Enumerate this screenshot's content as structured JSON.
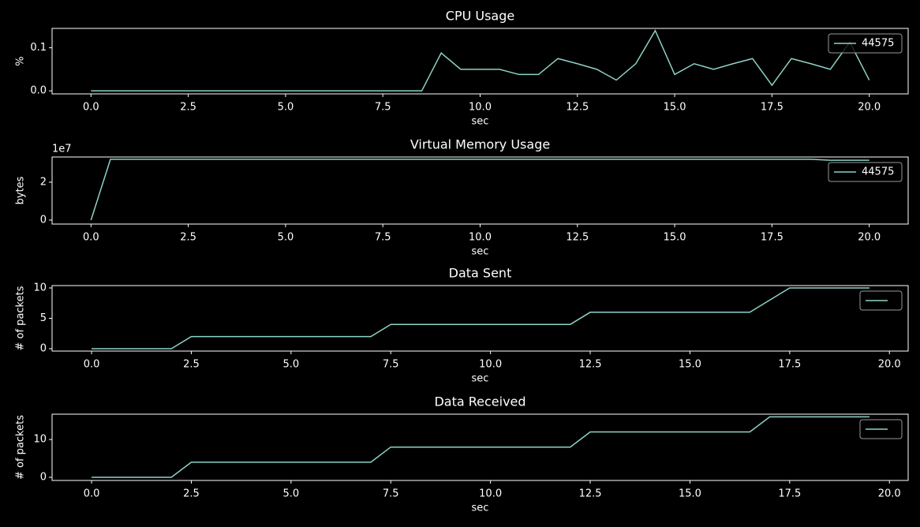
{
  "chart_data": [
    {
      "type": "line",
      "title": "CPU Usage",
      "xlabel": "sec",
      "ylabel": "%",
      "x": [
        0,
        0.5,
        1,
        1.5,
        2,
        2.5,
        3,
        3.5,
        4,
        4.5,
        5,
        5.5,
        6,
        6.5,
        7,
        7.5,
        8,
        8.5,
        9,
        9.5,
        10,
        10.5,
        11,
        11.5,
        12,
        12.5,
        13,
        13.5,
        14,
        14.5,
        15,
        15.5,
        16,
        16.5,
        17,
        17.5,
        18,
        18.5,
        19,
        19.5,
        20
      ],
      "series": [
        {
          "name": "44575",
          "color": "#8dd3c7",
          "values": [
            0,
            0,
            0,
            0,
            0,
            0,
            0,
            0,
            0,
            0,
            0,
            0,
            0,
            0,
            0,
            0,
            0,
            0,
            0.088,
            0.05,
            0.05,
            0.05,
            0.038,
            0.038,
            0.075,
            0.063,
            0.05,
            0.025,
            0.063,
            0.14,
            0.038,
            0.063,
            0.05,
            0.063,
            0.075,
            0.013,
            0.075,
            0.063,
            0.05,
            0.113,
            0.025
          ]
        }
      ],
      "xlim": [
        -1,
        21
      ],
      "xticks": [
        {
          "value": 0,
          "label": "0.0"
        },
        2.5,
        {
          "value": 5,
          "label": "5.0"
        },
        7.5,
        {
          "value": 10,
          "label": "10.0"
        },
        12.5,
        {
          "value": 15,
          "label": "15.0"
        },
        17.5,
        {
          "value": 20,
          "label": "20.0"
        }
      ],
      "ylim": [
        -0.007,
        0.145
      ],
      "yticks": [
        {
          "value": 0,
          "label": "0.0"
        },
        0.1
      ],
      "legend": "upper right"
    },
    {
      "type": "line",
      "title": "Virtual Memory Usage",
      "xlabel": "sec",
      "ylabel": "bytes",
      "offset_text": "1e7",
      "x": [
        0,
        0.5,
        1,
        1.5,
        2,
        2.5,
        3,
        3.5,
        4,
        4.5,
        5,
        5.5,
        6,
        6.5,
        7,
        7.5,
        8,
        8.5,
        9,
        9.5,
        10,
        10.5,
        11,
        11.5,
        12,
        12.5,
        13,
        13.5,
        14,
        14.5,
        15,
        15.5,
        16,
        16.5,
        17,
        17.5,
        18,
        18.5,
        19,
        19.5,
        20
      ],
      "series": [
        {
          "name": "44575",
          "color": "#8dd3c7",
          "values": [
            0,
            32100000,
            32100000,
            32100000,
            32100000,
            32100000,
            32100000,
            32100000,
            32100000,
            32100000,
            32100000,
            32100000,
            32100000,
            32100000,
            32100000,
            32100000,
            32100000,
            32100000,
            32100000,
            32100000,
            32100000,
            32100000,
            32100000,
            32100000,
            32100000,
            32100000,
            32100000,
            32100000,
            32100000,
            32100000,
            32100000,
            32100000,
            32100000,
            32100000,
            32100000,
            32100000,
            32100000,
            32100000,
            31600000,
            31600000,
            31600000
          ]
        }
      ],
      "xlim": [
        -1,
        21
      ],
      "xticks": [
        {
          "value": 0,
          "label": "0.0"
        },
        2.5,
        {
          "value": 5,
          "label": "5.0"
        },
        7.5,
        {
          "value": 10,
          "label": "10.0"
        },
        12.5,
        {
          "value": 15,
          "label": "15.0"
        },
        17.5,
        {
          "value": 20,
          "label": "20.0"
        }
      ],
      "ylim": [
        -2100000,
        33300000
      ],
      "yticks": [
        0,
        {
          "value": 20000000,
          "label": "2"
        }
      ],
      "legend": "upper right"
    },
    {
      "type": "line",
      "title": "Data Sent",
      "xlabel": "sec",
      "ylabel": "# of packets",
      "x": [
        0,
        0.5,
        1,
        1.5,
        2,
        2.5,
        3,
        3.5,
        4,
        4.5,
        5,
        5.5,
        6,
        6.5,
        7,
        7.5,
        8,
        8.5,
        9,
        9.5,
        10,
        10.5,
        11,
        11.5,
        12,
        12.5,
        13,
        13.5,
        14,
        14.5,
        15,
        15.5,
        16,
        16.5,
        17,
        17.5,
        18,
        18.5,
        19,
        19.5
      ],
      "series": [
        {
          "color": "#8dd3c7",
          "values": [
            0,
            0,
            0,
            0,
            0,
            2,
            2,
            2,
            2,
            2,
            2,
            2,
            2,
            2,
            2,
            4,
            4,
            4,
            4,
            4,
            4,
            4,
            4,
            4,
            4,
            6,
            6,
            6,
            6,
            6,
            6,
            6,
            6,
            6,
            8,
            10,
            10,
            10,
            10,
            10
          ]
        }
      ],
      "xlim": [
        -0.99,
        20.47
      ],
      "xticks": [
        {
          "value": 0,
          "label": "0.0"
        },
        2.5,
        {
          "value": 5,
          "label": "5.0"
        },
        7.5,
        {
          "value": 10,
          "label": "10.0"
        },
        12.5,
        {
          "value": 15,
          "label": "15.0"
        },
        17.5,
        {
          "value": 20,
          "label": "20.0"
        }
      ],
      "ylim": [
        -0.39,
        10.39
      ],
      "yticks": [
        0,
        5,
        10
      ],
      "legend": "upper right"
    },
    {
      "type": "line",
      "title": "Data Received",
      "xlabel": "sec",
      "ylabel": "# of packets",
      "x": [
        0,
        0.5,
        1,
        1.5,
        2,
        2.5,
        3,
        3.5,
        4,
        4.5,
        5,
        5.5,
        6,
        6.5,
        7,
        7.5,
        8,
        8.5,
        9,
        9.5,
        10,
        10.5,
        11,
        11.5,
        12,
        12.5,
        13,
        13.5,
        14,
        14.5,
        15,
        15.5,
        16,
        16.5,
        17,
        17.5,
        18,
        18.5,
        19,
        19.5
      ],
      "series": [
        {
          "color": "#8dd3c7",
          "values": [
            0,
            0,
            0,
            0,
            0,
            4,
            4,
            4,
            4,
            4,
            4,
            4,
            4,
            4,
            4,
            8,
            8,
            8,
            8,
            8,
            8,
            8,
            8,
            8,
            8,
            12,
            12,
            12,
            12,
            12,
            12,
            12,
            12,
            12,
            16,
            16,
            16,
            16,
            16,
            16
          ]
        }
      ],
      "xlim": [
        -0.99,
        20.47
      ],
      "xticks": [
        {
          "value": 0,
          "label": "0.0"
        },
        2.5,
        {
          "value": 5,
          "label": "5.0"
        },
        7.5,
        {
          "value": 10,
          "label": "10.0"
        },
        12.5,
        {
          "value": 15,
          "label": "15.0"
        },
        17.5,
        {
          "value": 20,
          "label": "20.0"
        }
      ],
      "ylim": [
        -0.83,
        16.7
      ],
      "yticks": [
        0,
        10
      ],
      "legend": "upper right"
    }
  ]
}
